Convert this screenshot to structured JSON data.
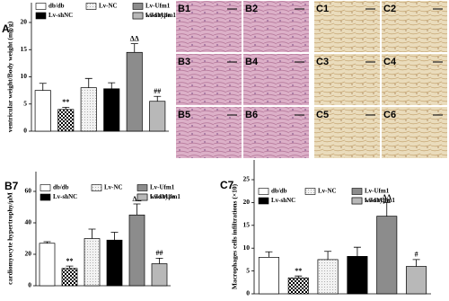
{
  "chart_data": [
    {
      "type": "bar",
      "title": "A",
      "y_label": "ventricular weight/Body weight (mg/g)",
      "categories": [
        "db/db",
        "wild type",
        "Lv-NC",
        "Lv-shNC",
        "Lv-Ufm1",
        "Lv-shUfm1"
      ],
      "values": [
        7.5,
        4.0,
        8.0,
        7.8,
        14.5,
        5.5
      ],
      "errors": [
        1.3,
        0.4,
        1.7,
        1.1,
        1.6,
        0.9
      ],
      "annotations": [
        null,
        "**",
        null,
        null,
        "ΔΔ",
        "##"
      ],
      "fills": [
        "#ffffff",
        "checker",
        "dots",
        "#000000",
        "#8c8c8c",
        "#b8b8b8"
      ],
      "ylim": [
        0,
        20
      ],
      "yticks": [
        0,
        5,
        10,
        15,
        20
      ]
    },
    {
      "type": "bar",
      "title": "B7",
      "y_label": "cardiomyocyte hypertrophy/μM",
      "categories": [
        "db/db",
        "wild type",
        "Lv-NC",
        "Lv-shNC",
        "Lv-Ufm1",
        "Lv-shUfm1"
      ],
      "values": [
        27,
        11,
        30,
        29,
        45,
        14
      ],
      "errors": [
        1,
        1.5,
        6,
        5,
        7,
        3.5
      ],
      "annotations": [
        null,
        "**",
        null,
        null,
        "ΔΔ",
        "##"
      ],
      "fills": [
        "#ffffff",
        "checker",
        "dots",
        "#000000",
        "#8c8c8c",
        "#b8b8b8"
      ],
      "ylim": [
        0,
        60
      ],
      "yticks": [
        0,
        20,
        40,
        60
      ]
    },
    {
      "type": "bar",
      "title": "C7",
      "y_label": "Macrophages cells infiltrations (×10)",
      "categories": [
        "db/db",
        "wild type",
        "Lv-NC",
        "Lv-shNC",
        "Lv-Ufm1",
        "Lv-shUfm1"
      ],
      "values": [
        8,
        3.5,
        7.5,
        8.2,
        17,
        6
      ],
      "errors": [
        1.2,
        0.4,
        1.8,
        2,
        3,
        1.5
      ],
      "annotations": [
        null,
        "**",
        null,
        null,
        "ΔΔ",
        "#"
      ],
      "fills": [
        "#ffffff",
        "checker",
        "dots",
        "#000000",
        "#8c8c8c",
        "#b8b8b8"
      ],
      "ylim": [
        0,
        25
      ],
      "yticks": [
        0,
        5,
        10,
        15,
        20,
        25
      ]
    }
  ],
  "image_panels": [
    "B1",
    "B2",
    "B3",
    "B4",
    "B5",
    "B6",
    "C1",
    "C2",
    "C3",
    "C4",
    "C5",
    "C6"
  ]
}
